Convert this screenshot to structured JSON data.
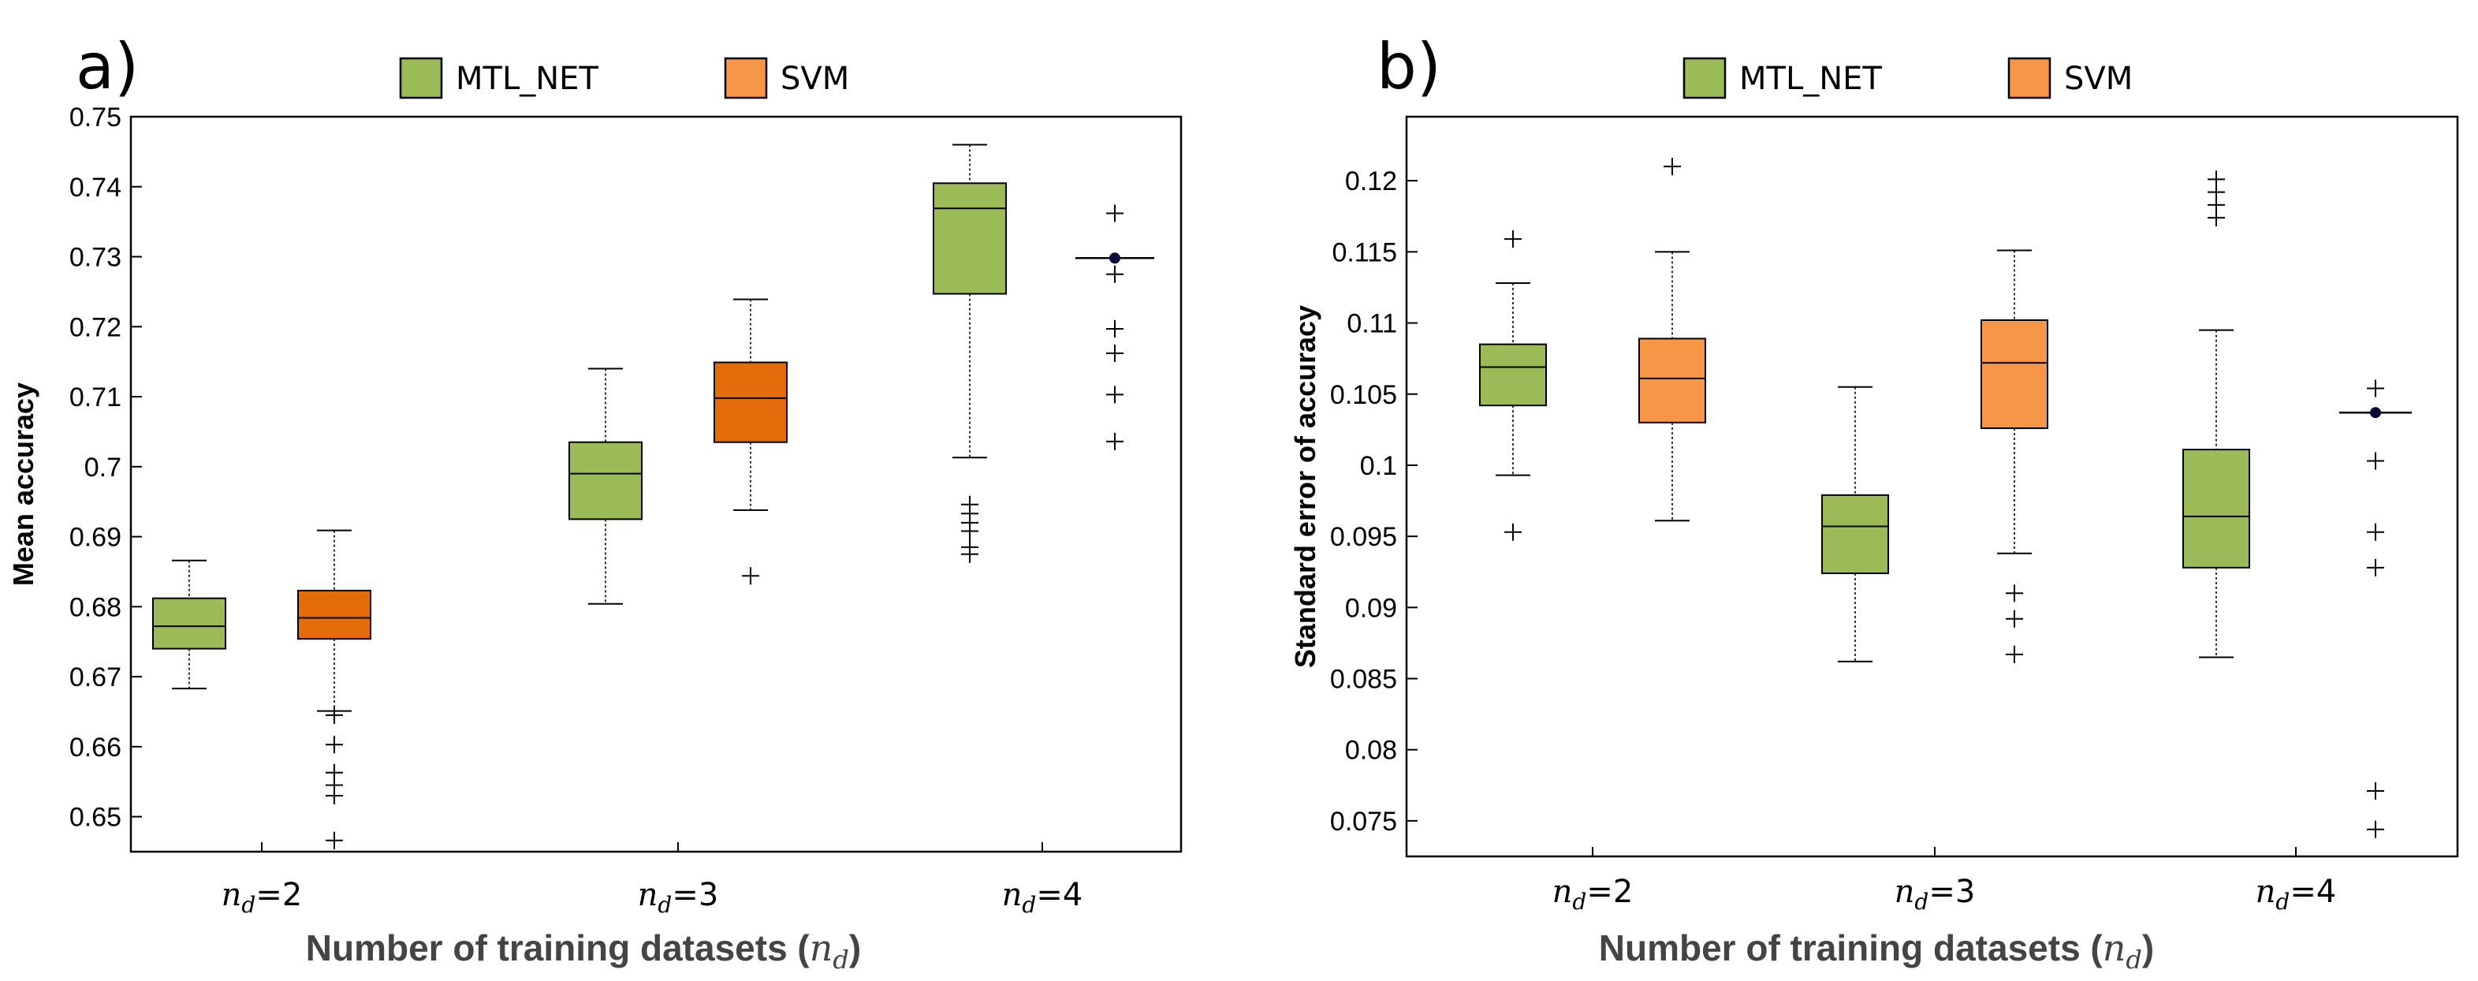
{
  "chart_data": [
    {
      "type": "box",
      "panel_label": "a)",
      "title": "",
      "xlabel": "Number of training datasets (",
      "xlabel_var": "n",
      "xlabel_sub": "d",
      "xlabel_close": ")",
      "ylabel": "Mean accuracy",
      "ylim": [
        0.645,
        0.75
      ],
      "yticks": [
        0.65,
        0.66,
        0.67,
        0.68,
        0.69,
        0.7,
        0.71,
        0.72,
        0.73,
        0.74,
        0.75
      ],
      "ytick_labels": [
        "0.65",
        "0.66",
        "0.67",
        "0.68",
        "0.69",
        "0.7",
        "0.71",
        "0.72",
        "0.73",
        "0.74",
        "0.75"
      ],
      "categories": [
        {
          "var": "n",
          "sub": "d",
          "eq": "=2"
        },
        {
          "var": "n",
          "sub": "d",
          "eq": "=3"
        },
        {
          "var": "n",
          "sub": "d",
          "eq": "=4"
        }
      ],
      "legend": [
        {
          "name": "MTL_NET",
          "color": "#9BBB59"
        },
        {
          "name": "SVM",
          "color": "#F79646"
        }
      ],
      "series": [
        {
          "name": "MTL_NET",
          "color": "#9BBB59",
          "boxes": [
            {
              "category": 0,
              "whisker_low": 0.6683,
              "q1": 0.674,
              "median": 0.6772,
              "q3": 0.6812,
              "whisker_high": 0.6866,
              "outliers": []
            },
            {
              "category": 1,
              "whisker_low": 0.6804,
              "q1": 0.6925,
              "median": 0.699,
              "q3": 0.7035,
              "whisker_high": 0.714,
              "outliers": []
            },
            {
              "category": 2,
              "whisker_low": 0.7013,
              "q1": 0.7247,
              "median": 0.7369,
              "q3": 0.7405,
              "whisker_high": 0.746,
              "outliers": [
                0.6946,
                0.6933,
                0.692,
                0.6908,
                0.6885,
                0.6875
              ]
            }
          ]
        },
        {
          "name": "SVM",
          "color": "#E46C0A",
          "boxes": [
            {
              "category": 0,
              "whisker_low": 0.6651,
              "q1": 0.6754,
              "median": 0.6784,
              "q3": 0.6823,
              "whisker_high": 0.6909,
              "outliers": [
                0.6645,
                0.6603,
                0.6563,
                0.6545,
                0.653,
                0.6466
              ]
            },
            {
              "category": 1,
              "whisker_low": 0.6938,
              "q1": 0.7035,
              "median": 0.7098,
              "q3": 0.7149,
              "whisker_high": 0.7239,
              "outliers": [
                0.6844
              ]
            },
            {
              "category": 2,
              "whisker_low": 0.7298,
              "q1": 0.7298,
              "median": 0.7298,
              "q3": 0.7298,
              "whisker_high": 0.7298,
              "outliers": [
                0.7362,
                0.7275,
                0.7197,
                0.7162,
                0.7103,
                0.7036
              ],
              "point": 0.7298
            }
          ]
        }
      ]
    },
    {
      "type": "box",
      "panel_label": "b)",
      "title": "",
      "xlabel": "Number of training datasets (",
      "xlabel_var": "n",
      "xlabel_sub": "d",
      "xlabel_close": ")",
      "ylabel": "Standard error of accuracy",
      "ylim": [
        0.0725,
        0.1245
      ],
      "yticks": [
        0.075,
        0.08,
        0.085,
        0.09,
        0.095,
        0.1,
        0.105,
        0.11,
        0.115,
        0.12
      ],
      "ytick_labels": [
        "0.075",
        "0.08",
        "0.085",
        "0.09",
        "0.095",
        "0.1",
        "0.105",
        "0.11",
        "0.115",
        "0.12"
      ],
      "categories": [
        {
          "var": "n",
          "sub": "d",
          "eq": "=2"
        },
        {
          "var": "n",
          "sub": "d",
          "eq": "=3"
        },
        {
          "var": "n",
          "sub": "d",
          "eq": "=4"
        }
      ],
      "legend": [
        {
          "name": "MTL_NET",
          "color": "#9BBB59"
        },
        {
          "name": "SVM",
          "color": "#F79646"
        }
      ],
      "series": [
        {
          "name": "MTL_NET",
          "color": "#9BBB59",
          "boxes": [
            {
              "category": 0,
              "whisker_low": 0.0993,
              "q1": 0.1042,
              "median": 0.1069,
              "q3": 0.1085,
              "whisker_high": 0.1128,
              "outliers": [
                0.1159,
                0.0953
              ]
            },
            {
              "category": 1,
              "whisker_low": 0.0862,
              "q1": 0.0924,
              "median": 0.0957,
              "q3": 0.0979,
              "whisker_high": 0.1055,
              "outliers": []
            },
            {
              "category": 2,
              "whisker_low": 0.0865,
              "q1": 0.0928,
              "median": 0.0964,
              "q3": 0.1011,
              "whisker_high": 0.1095,
              "outliers": [
                0.1201,
                0.1192,
                0.1183,
                0.1174
              ]
            }
          ]
        },
        {
          "name": "SVM",
          "color": "#F79646",
          "boxes": [
            {
              "category": 0,
              "whisker_low": 0.0961,
              "q1": 0.103,
              "median": 0.1061,
              "q3": 0.1089,
              "whisker_high": 0.115,
              "outliers": [
                0.121
              ]
            },
            {
              "category": 1,
              "whisker_low": 0.0938,
              "q1": 0.1026,
              "median": 0.1072,
              "q3": 0.1102,
              "whisker_high": 0.1151,
              "outliers": [
                0.091,
                0.0892,
                0.0867
              ]
            },
            {
              "category": 2,
              "whisker_low": 0.1037,
              "q1": 0.1037,
              "median": 0.1037,
              "q3": 0.1037,
              "whisker_high": 0.1037,
              "outliers": [
                0.1054,
                0.1003,
                0.0953,
                0.0928,
                0.0771,
                0.0744
              ],
              "point": 0.1037
            }
          ]
        }
      ]
    }
  ]
}
